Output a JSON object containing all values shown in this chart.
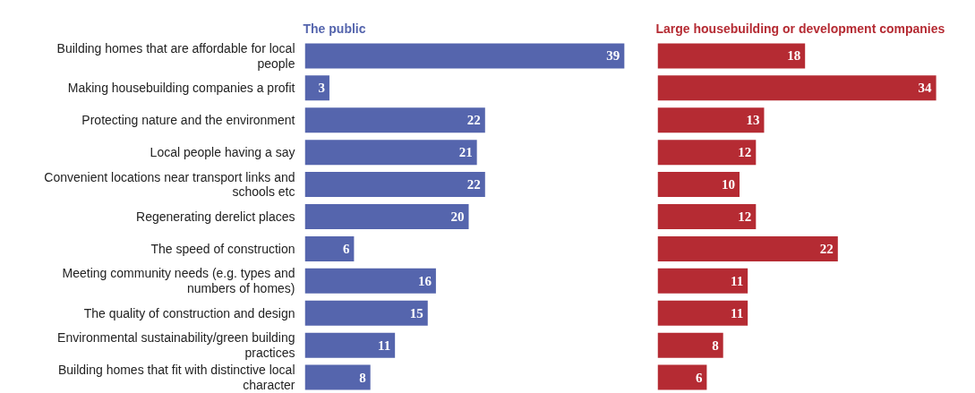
{
  "chart_data": [
    {
      "type": "bar",
      "orientation": "horizontal",
      "title": "The public",
      "categories": [
        "Building homes that are affordable for local people",
        "Making housebuilding companies a profit",
        "Protecting nature and the environment",
        "Local people having a say",
        "Convenient locations near transport links and schools etc",
        "Regenerating derelict places",
        "The speed of construction",
        "Meeting community needs (e.g. types and numbers of homes)",
        "The quality of construction and design",
        "Environmental sustainability/green building practices",
        "Building homes that fit with distinctive local character"
      ],
      "values": [
        39,
        3,
        22,
        21,
        22,
        20,
        6,
        16,
        15,
        11,
        8
      ],
      "color": "#5565ad",
      "data_labels": true
    },
    {
      "type": "bar",
      "orientation": "horizontal",
      "title": "Large housebuilding or development companies",
      "categories": [
        "Building homes that are affordable for local people",
        "Making housebuilding companies a profit",
        "Protecting nature and the environment",
        "Local people having a say",
        "Convenient locations near transport links and schools etc",
        "Regenerating derelict places",
        "The speed of construction",
        "Meeting community needs (e.g. types and numbers of homes)",
        "The quality of construction and design",
        "Environmental sustainability/green building practices",
        "Building homes that fit with distinctive local character"
      ],
      "values": [
        18,
        34,
        13,
        12,
        10,
        12,
        22,
        11,
        11,
        8,
        6
      ],
      "color": "#b52b33",
      "data_labels": true,
      "tick_labels": false
    }
  ]
}
